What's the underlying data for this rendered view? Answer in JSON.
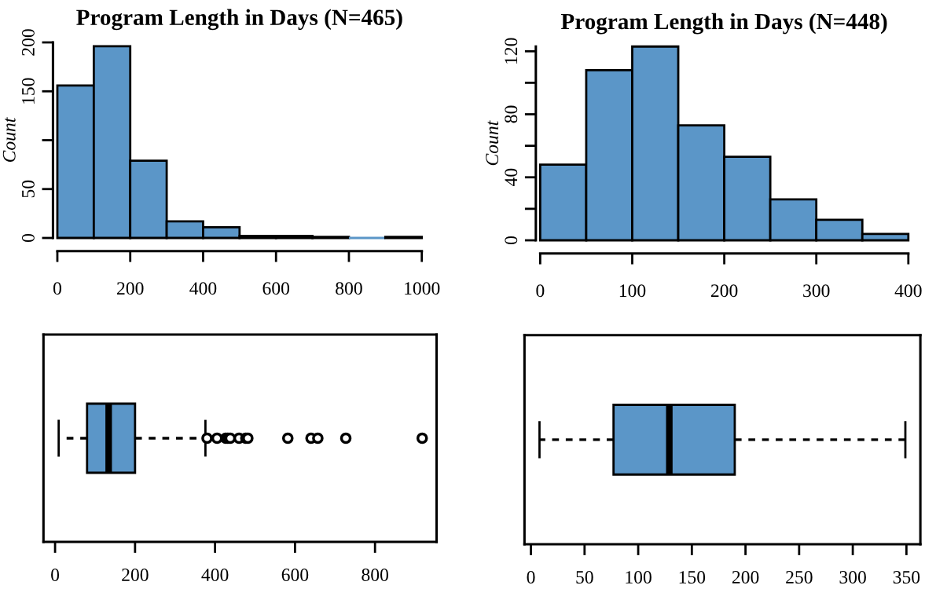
{
  "chart_data": [
    {
      "type": "histogram",
      "title": "Program Length in Days (N=465)",
      "ylabel": "Count",
      "color": "#5b96c8",
      "bins": [
        0,
        100,
        200,
        300,
        400,
        500,
        600,
        700,
        800,
        900,
        1000
      ],
      "values": [
        156,
        196,
        79,
        17,
        11,
        2,
        2,
        1,
        0,
        1
      ],
      "xlim": [
        0,
        1000
      ],
      "xticks": [
        0,
        200,
        400,
        600,
        800,
        1000
      ],
      "ylim": [
        0,
        200
      ],
      "yticks": [
        0,
        50,
        {
          "value": 100,
          "label": null
        },
        150,
        200
      ]
    },
    {
      "type": "histogram",
      "title": "Program Length in Days (N=448)",
      "ylabel": "Count",
      "color": "#5b96c8",
      "bins": [
        0,
        50,
        100,
        150,
        200,
        250,
        300,
        350,
        400
      ],
      "values": [
        48,
        108,
        123,
        73,
        53,
        26,
        13,
        4
      ],
      "xlim": [
        0,
        400
      ],
      "xticks": [
        0,
        100,
        200,
        300,
        400
      ],
      "ylim": [
        0,
        123
      ],
      "yticks": [
        0,
        {
          "value": 20,
          "label": null
        },
        40,
        {
          "value": 60,
          "label": null
        },
        80,
        {
          "value": 100,
          "label": null
        },
        120
      ]
    },
    {
      "type": "box",
      "orientation": "horizontal",
      "categories": [
        null
      ],
      "color": "#5b96c8",
      "tick_labels": "x",
      "boxes": [
        {
          "low": 9,
          "q1": 80,
          "median": 134,
          "q3": 200,
          "high": 376,
          "outliers": [
            380,
            405,
            427,
            432,
            438,
            460,
            477,
            482,
            582,
            640,
            657,
            727,
            918
          ]
        }
      ],
      "xlim": [
        -29,
        954
      ],
      "xticks": [
        0,
        200,
        400,
        600,
        800
      ]
    },
    {
      "type": "box",
      "orientation": "horizontal",
      "categories": [
        null
      ],
      "color": "#5b96c8",
      "tick_labels": "x",
      "boxes": [
        {
          "low": 8,
          "q1": 77,
          "median": 129,
          "q3": 190,
          "high": 349
        }
      ],
      "xlim": [
        -6,
        363
      ],
      "xticks": [
        0,
        50,
        100,
        150,
        200,
        250,
        300,
        350
      ]
    }
  ]
}
